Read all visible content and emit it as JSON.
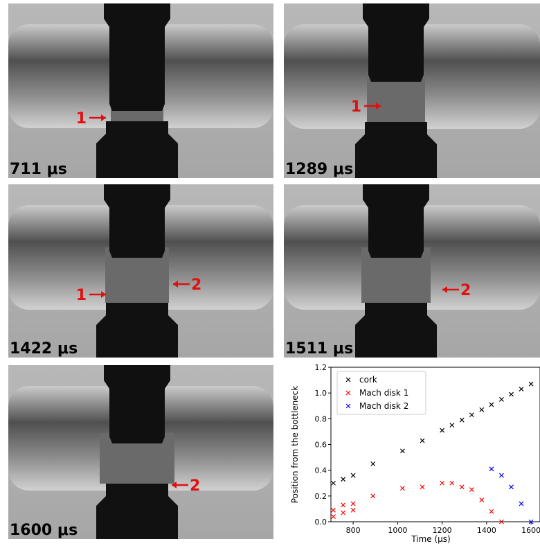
{
  "panels": [
    {
      "time": "711 μs",
      "markers": [
        "1"
      ]
    },
    {
      "time": "1289 μs",
      "markers": [
        "1"
      ]
    },
    {
      "time": "1422 μs",
      "markers": [
        "1",
        "2"
      ]
    },
    {
      "time": "1511 μs",
      "markers": [
        "2"
      ]
    },
    {
      "time": "1600 μs",
      "markers": [
        "2"
      ]
    }
  ],
  "chart_data": {
    "type": "scatter",
    "xlabel": "Time (μs)",
    "ylabel": "Position from the bottleneck",
    "xlim": [
      700,
      1640
    ],
    "ylim": [
      0,
      1.2
    ],
    "xticks": [
      800,
      1000,
      1200,
      1400,
      1600
    ],
    "yticks": [
      {
        "value": 0,
        "label": "0.0"
      },
      0.2,
      0.4,
      0.6,
      0.8,
      {
        "value": 1,
        "label": "1.0"
      },
      1.2
    ],
    "legend": "upper left",
    "series": [
      {
        "name": "cork",
        "color": "#000000",
        "x": [
          711,
          755,
          800,
          889,
          1022,
          1111,
          1200,
          1244,
          1289,
          1333,
          1378,
          1422,
          1467,
          1511,
          1556,
          1600
        ],
        "values": [
          0.3,
          0.33,
          0.36,
          0.45,
          0.55,
          0.63,
          0.71,
          0.75,
          0.79,
          0.83,
          0.87,
          0.91,
          0.95,
          0.99,
          1.03,
          1.07
        ]
      },
      {
        "name": "Mach disk 1",
        "color": "#ff0000",
        "x": [
          711,
          711,
          755,
          755,
          800,
          800,
          889,
          1022,
          1111,
          1200,
          1244,
          1289,
          1333,
          1378,
          1422,
          1467
        ],
        "values": [
          0.04,
          0.09,
          0.07,
          0.13,
          0.09,
          0.14,
          0.2,
          0.26,
          0.27,
          0.3,
          0.3,
          0.27,
          0.25,
          0.17,
          0.08,
          0.0
        ]
      },
      {
        "name": "Mach disk 2",
        "color": "#0000ff",
        "x": [
          1422,
          1467,
          1511,
          1556,
          1600
        ],
        "values": [
          0.41,
          0.36,
          0.27,
          0.14,
          0.0
        ]
      }
    ]
  }
}
